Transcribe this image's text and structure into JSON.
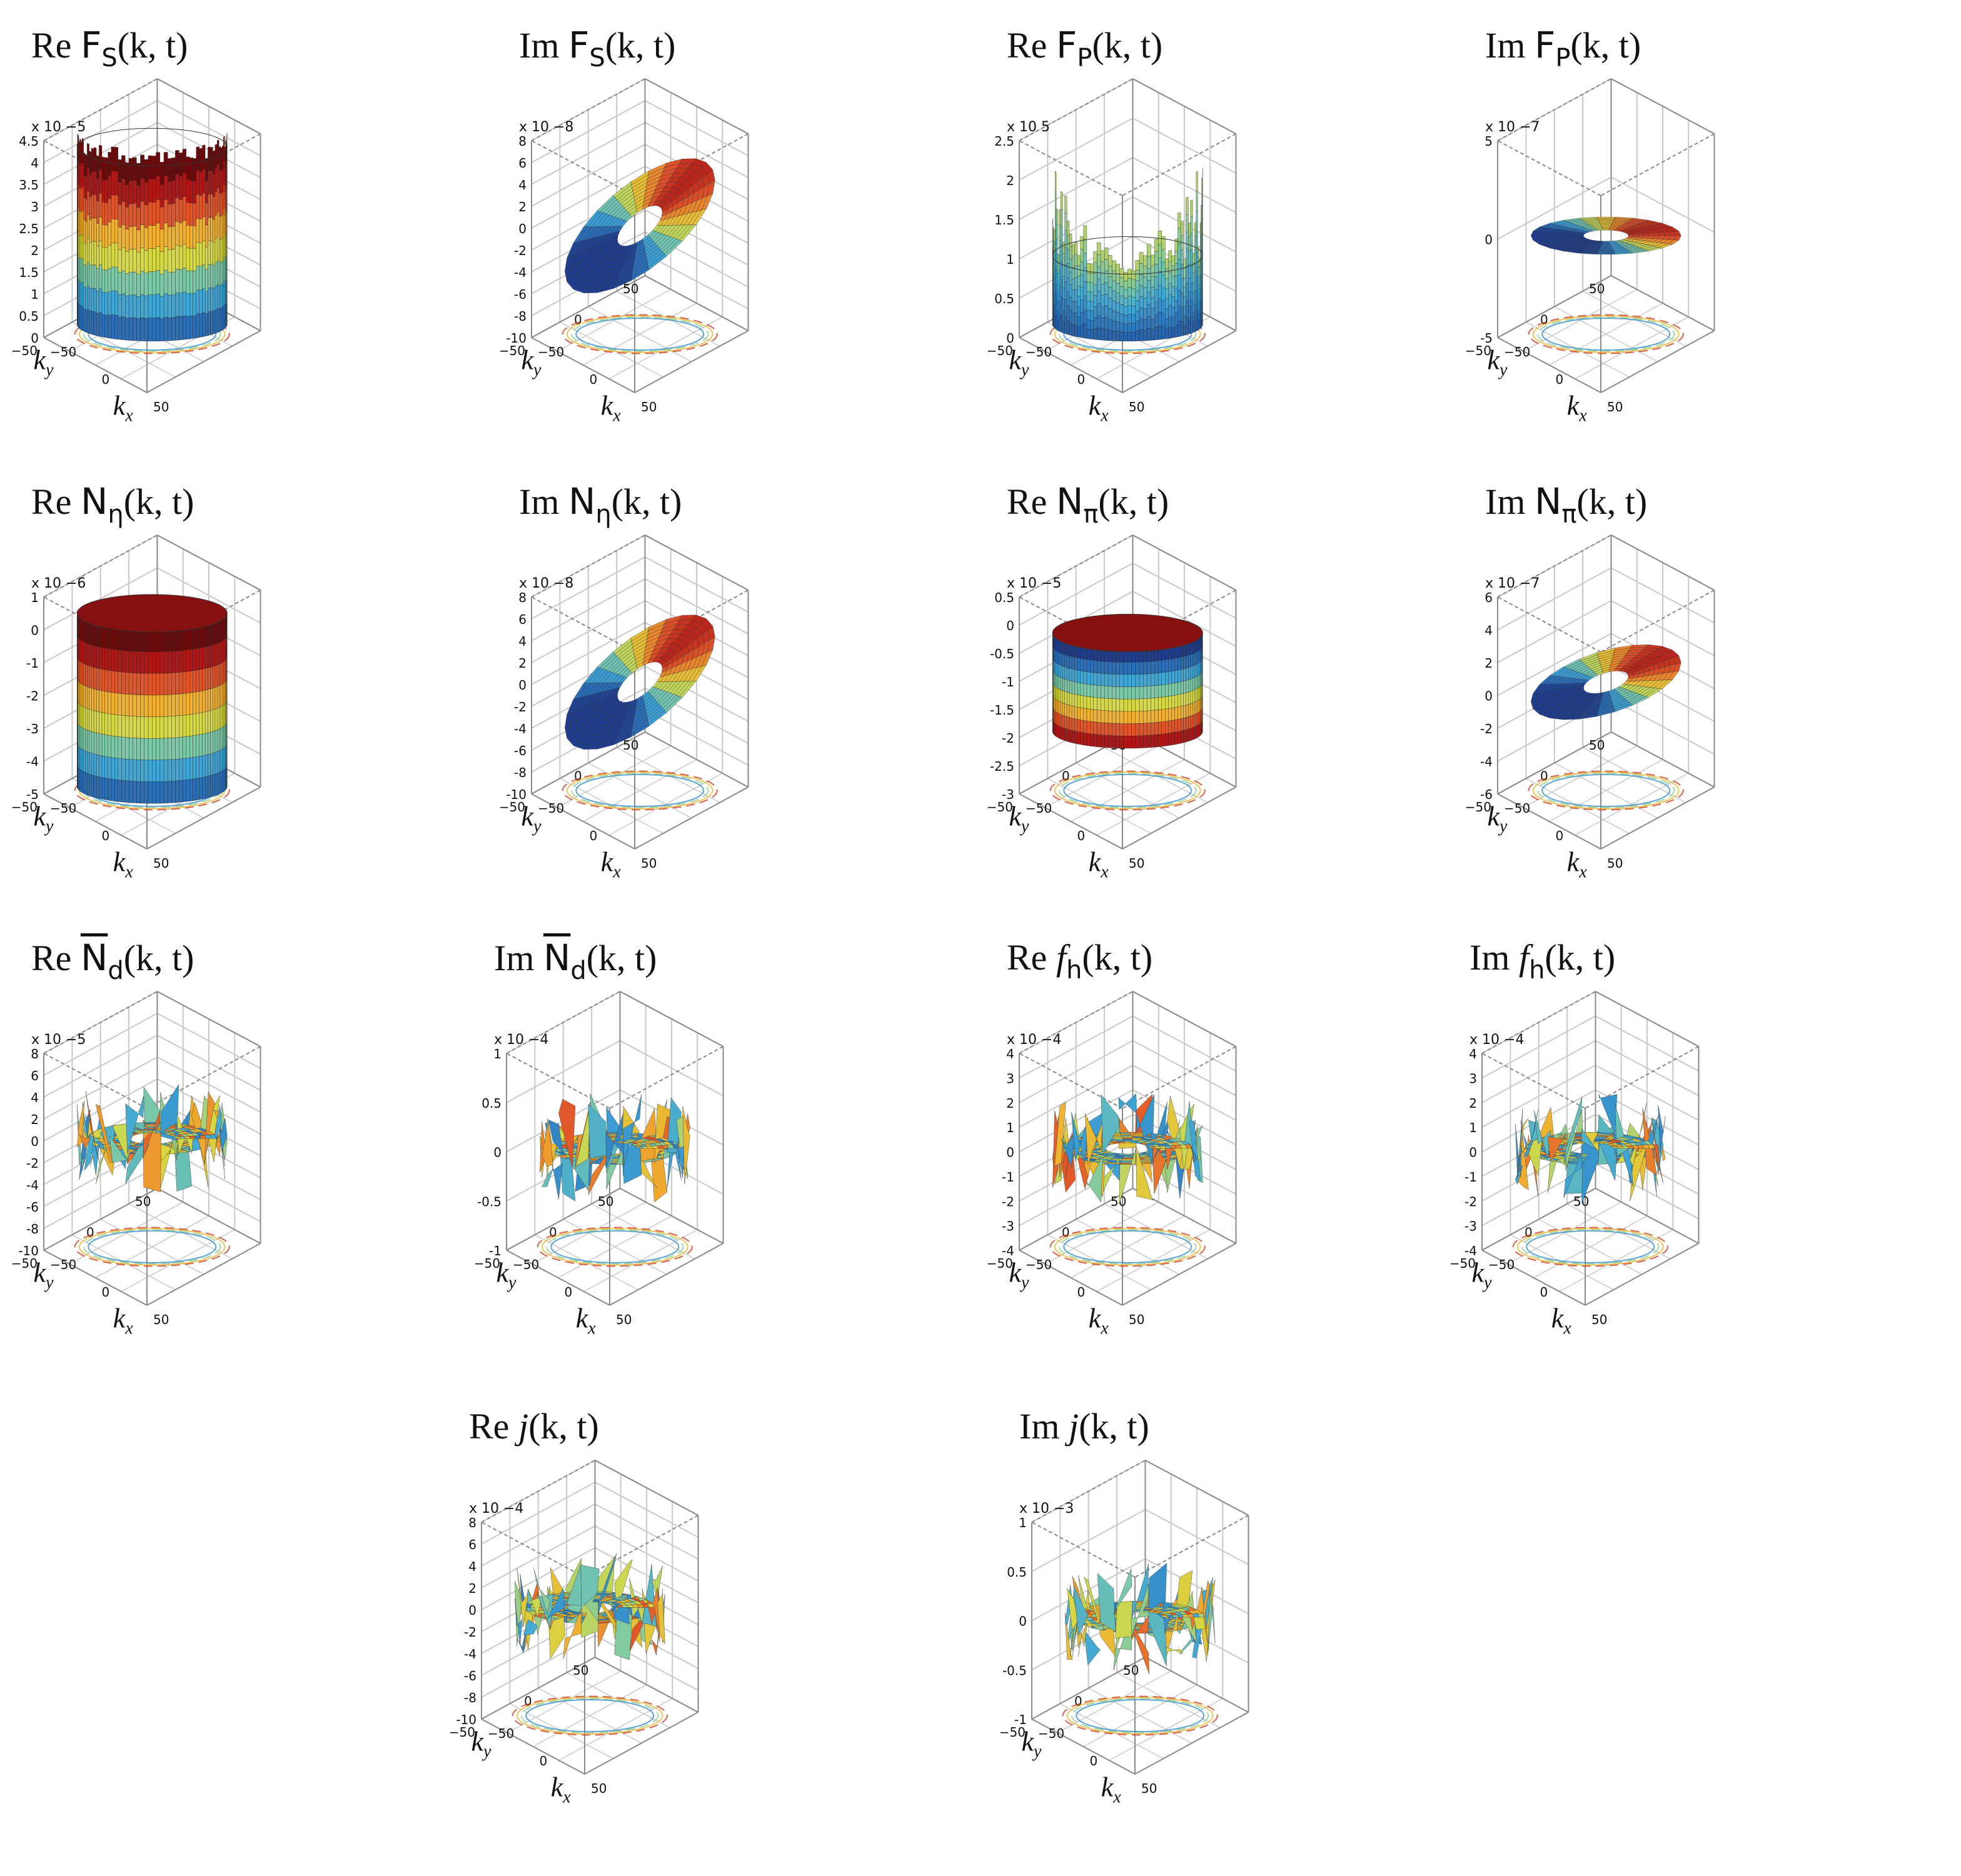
{
  "chart_data": [
    {
      "type": "surface3d",
      "title": {
        "prefix": "Re",
        "fn": "F",
        "sub": "S",
        "args": "(k, t)"
      },
      "exponent": "x 10 −5",
      "zticks": [
        "4.5",
        "4",
        "3.5",
        "3",
        "2.5",
        "2",
        "1.5",
        "1",
        "0.5",
        "0"
      ],
      "zlim": [
        0,
        4.5
      ],
      "xticks": [
        "-50",
        "0",
        "50"
      ],
      "yticks": [
        "-50",
        "0",
        "50"
      ],
      "xlabel": "k_x",
      "ylabel": "k_y",
      "shape": "cup",
      "base": 0.05,
      "rim": 1.0
    },
    {
      "type": "surface3d",
      "title": {
        "prefix": "Im",
        "fn": "F",
        "sub": "S",
        "args": "(k, t)"
      },
      "exponent": "x 10 −8",
      "zticks": [
        "8",
        "6",
        "4",
        "2",
        "0",
        "-2",
        "-4",
        "-6",
        "-8",
        "-10"
      ],
      "zlim": [
        -10,
        8
      ],
      "xticks": [
        "-50",
        "0",
        "50"
      ],
      "yticks": [
        "-50",
        "0",
        "50"
      ],
      "xlabel": "k_x",
      "ylabel": "k_y",
      "shape": "tilt",
      "base": 0.55,
      "rim": 0.3
    },
    {
      "type": "surface3d",
      "title": {
        "prefix": "Re",
        "fn": "F",
        "sub": "P",
        "args": "(k, t)"
      },
      "exponent": "x 10 5",
      "zticks": [
        "2.5",
        "2",
        "1.5",
        "1",
        "0.5",
        "0"
      ],
      "zlim": [
        0,
        2.5
      ],
      "xticks": [
        "-50",
        "0",
        "50"
      ],
      "yticks": [
        "-50",
        "0",
        "50"
      ],
      "xlabel": "k_x",
      "ylabel": "k_y",
      "shape": "spikes",
      "base": 0.05,
      "rim": 0.45
    },
    {
      "type": "surface3d",
      "title": {
        "prefix": "Im",
        "fn": "F",
        "sub": "P",
        "args": "(k, t)"
      },
      "exponent": "x 10 −7",
      "zticks": [
        "5",
        "0",
        "-5"
      ],
      "zlim": [
        -5,
        5
      ],
      "xticks": [
        "-50",
        "0",
        "50"
      ],
      "yticks": [
        "-50",
        "0",
        "50"
      ],
      "xlabel": "k_x",
      "ylabel": "k_y",
      "shape": "flat",
      "base": 0.5,
      "rim": 0.1
    },
    {
      "type": "surface3d",
      "title": {
        "prefix": "Re",
        "fn": "N",
        "sub": "η",
        "args": "(k, t)"
      },
      "exponent": "x 10 −6",
      "zticks": [
        "1",
        "0",
        "-1",
        "-2",
        "-3",
        "-4",
        "-5"
      ],
      "zlim": [
        -5,
        1
      ],
      "xticks": [
        "-50",
        "0",
        "50"
      ],
      "yticks": [
        "-50",
        "0",
        "50"
      ],
      "xlabel": "k_x",
      "ylabel": "k_y",
      "shape": "dome",
      "base": 0.02,
      "rim": 0.95
    },
    {
      "type": "surface3d",
      "title": {
        "prefix": "Im",
        "fn": "N",
        "sub": "η",
        "args": "(k, t)"
      },
      "exponent": "x 10 −8",
      "zticks": [
        "8",
        "6",
        "4",
        "2",
        "0",
        "-2",
        "-4",
        "-6",
        "-8",
        "-10"
      ],
      "zlim": [
        -10,
        8
      ],
      "xticks": [
        "-50",
        "0",
        "50"
      ],
      "yticks": [
        "-50",
        "0",
        "50"
      ],
      "xlabel": "k_x",
      "ylabel": "k_y",
      "shape": "tilt",
      "base": 0.55,
      "rim": 0.35
    },
    {
      "type": "surface3d",
      "title": {
        "prefix": "Re",
        "fn": "N",
        "sub": "π",
        "args": "(k, t)"
      },
      "exponent": "x 10 −5",
      "zticks": [
        "0.5",
        "0",
        "-0.5",
        "-1",
        "-1.5",
        "-2",
        "-2.5",
        "-3"
      ],
      "zlim": [
        -3,
        0.5
      ],
      "xticks": [
        "-50",
        "0",
        "50"
      ],
      "yticks": [
        "-50",
        "0",
        "50"
      ],
      "xlabel": "k_x",
      "ylabel": "k_y",
      "shape": "cap",
      "base": 0.85,
      "rim": 0.3
    },
    {
      "type": "surface3d",
      "title": {
        "prefix": "Im",
        "fn": "N",
        "sub": "π",
        "args": "(k, t)"
      },
      "exponent": "x 10 −7",
      "zticks": [
        "6",
        "4",
        "2",
        "0",
        "-2",
        "-4",
        "-6"
      ],
      "zlim": [
        -6,
        6
      ],
      "xticks": [
        "-50",
        "0",
        "50"
      ],
      "yticks": [
        "-50",
        "0",
        "50"
      ],
      "xlabel": "k_x",
      "ylabel": "k_y",
      "shape": "flattilt",
      "base": 0.55,
      "rim": 0.1
    },
    {
      "type": "surface3d",
      "title": {
        "prefix": "Re",
        "fn": "N",
        "sub": "d",
        "args": "(k, t)",
        "overline": true
      },
      "exponent": "x 10 −5",
      "zticks": [
        "8",
        "6",
        "4",
        "2",
        "0",
        "-2",
        "-4",
        "-6",
        "-8",
        "-10"
      ],
      "zlim": [
        -10,
        8
      ],
      "xticks": [
        "-50",
        "0",
        "50"
      ],
      "yticks": [
        "-50",
        "0",
        "50"
      ],
      "xlabel": "k_x",
      "ylabel": "k_y",
      "shape": "noise",
      "base": 0.55,
      "rim": 0.25
    },
    {
      "type": "surface3d",
      "title": {
        "prefix": "Im",
        "fn": "N",
        "sub": "d",
        "args": "(k, t)",
        "overline": true
      },
      "exponent": "x 10 −4",
      "zticks": [
        "1",
        "0.5",
        "0",
        "-0.5",
        "-1"
      ],
      "zlim": [
        -1,
        1
      ],
      "xticks": [
        "-50",
        "0",
        "50"
      ],
      "yticks": [
        "-50",
        "0",
        "50"
      ],
      "xlabel": "k_x",
      "ylabel": "k_y",
      "shape": "noise",
      "base": 0.5,
      "rim": 0.25
    },
    {
      "type": "surface3d",
      "title": {
        "prefix": "Re",
        "fn": "f",
        "sub": "h",
        "args": "(k, t)",
        "italicfn": true
      },
      "exponent": "x 10 −4",
      "zticks": [
        "4",
        "3",
        "2",
        "1",
        "0",
        "-1",
        "-2",
        "-3",
        "-4"
      ],
      "zlim": [
        -4,
        4
      ],
      "xticks": [
        "-50",
        "0",
        "50"
      ],
      "yticks": [
        "-50",
        "0",
        "50"
      ],
      "xlabel": "k_x",
      "ylabel": "k_y",
      "shape": "noise",
      "base": 0.5,
      "rim": 0.2
    },
    {
      "type": "surface3d",
      "title": {
        "prefix": "Im",
        "fn": "f",
        "sub": "h",
        "args": "(k, t)",
        "italicfn": true
      },
      "exponent": "x 10 −4",
      "zticks": [
        "4",
        "3",
        "2",
        "1",
        "0",
        "-1",
        "-2",
        "-3",
        "-4"
      ],
      "zlim": [
        -4,
        4
      ],
      "xticks": [
        "-50",
        "0",
        "50"
      ],
      "yticks": [
        "-50",
        "0",
        "50"
      ],
      "xlabel": "k_x",
      "ylabel": "k_y",
      "shape": "noise",
      "base": 0.5,
      "rim": 0.2
    },
    {
      "type": "surface3d",
      "title": {
        "prefix": "Re",
        "fn": "j",
        "sub": "",
        "args": "(k, t)",
        "italicfn": true
      },
      "exponent": "x 10 −4",
      "zticks": [
        "8",
        "6",
        "4",
        "2",
        "0",
        "-2",
        "-4",
        "-6",
        "-8",
        "-10"
      ],
      "zlim": [
        -10,
        8
      ],
      "xticks": [
        "-50",
        "0",
        "50"
      ],
      "yticks": [
        "-50",
        "0",
        "50"
      ],
      "xlabel": "k_x",
      "ylabel": "k_y",
      "shape": "noise",
      "base": 0.55,
      "rim": 0.25
    },
    {
      "type": "surface3d",
      "title": {
        "prefix": "Im",
        "fn": "j",
        "sub": "",
        "args": "(k, t)",
        "italicfn": true
      },
      "exponent": "x 10 −3",
      "zticks": [
        "1",
        "0.5",
        "0",
        "-0.5",
        "-1"
      ],
      "zlim": [
        -1,
        1
      ],
      "xticks": [
        "-50",
        "0",
        "50"
      ],
      "yticks": [
        "-50",
        "0",
        "50"
      ],
      "xlabel": "k_x",
      "ylabel": "k_y",
      "shape": "noise",
      "base": 0.5,
      "rim": 0.25
    }
  ],
  "colors": {
    "axis": "#8a8a8a",
    "grid": "#c9c9c9",
    "text": "#111111",
    "colormap": [
      "#1f3d8c",
      "#2a6fb8",
      "#3fa6d6",
      "#7cc9a8",
      "#d6d944",
      "#f0b030",
      "#e0552a",
      "#b01818",
      "#6a0a0a"
    ]
  }
}
